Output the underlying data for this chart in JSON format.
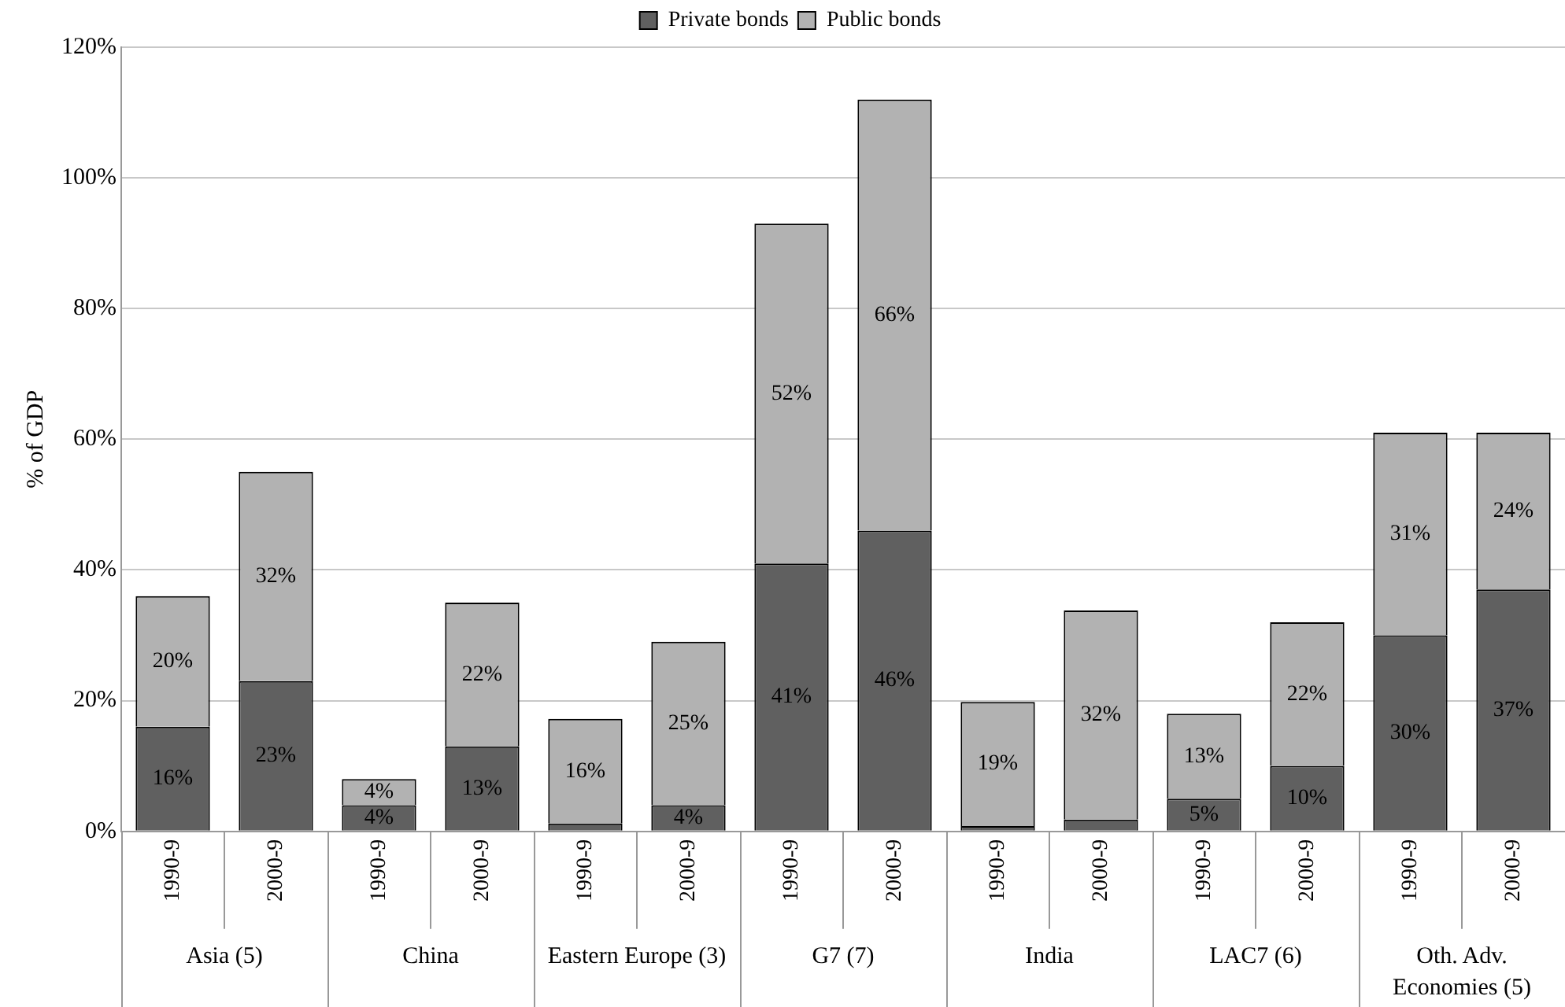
{
  "chart_data": {
    "type": "bar",
    "stacked": true,
    "ylabel": "% of GDP",
    "categories": [
      "1990-9",
      "2000-9",
      "1990-9",
      "2000-9",
      "1990-9",
      "2000-9",
      "1990-9",
      "2000-9",
      "1990-9",
      "2000-9",
      "1990-9",
      "2000-9",
      "1990-9",
      "2000-9"
    ],
    "series": [
      {
        "name": "Private bonds",
        "color": "#606060",
        "values": [
          16,
          23,
          4,
          13,
          1.2,
          4,
          41,
          46,
          0.8,
          1.8,
          5,
          10,
          30,
          37
        ],
        "value_labels": [
          "16%",
          "23%",
          "4%",
          "13%",
          null,
          "4%",
          "41%",
          "46%",
          null,
          null,
          "5%",
          "10%",
          "30%",
          "37%"
        ]
      },
      {
        "name": "Public bonds",
        "color": "#b2b2b2",
        "values": [
          20,
          32,
          4,
          22,
          16,
          25,
          52,
          66,
          19,
          32,
          13,
          22,
          31,
          24
        ],
        "value_labels": [
          "20%",
          "32%",
          "4%",
          "22%",
          "16%",
          "25%",
          "52%",
          "66%",
          "19%",
          "32%",
          "13%",
          "22%",
          "31%",
          "24%"
        ]
      }
    ],
    "ylim": [
      0,
      120
    ],
    "yticks": [
      {
        "value": 0,
        "label": "0%"
      },
      {
        "value": 20,
        "label": "20%"
      },
      {
        "value": 40,
        "label": "40%"
      },
      {
        "value": 60,
        "label": "60%"
      },
      {
        "value": 80,
        "label": "80%"
      },
      {
        "value": 100,
        "label": "100%"
      },
      {
        "value": 120,
        "label": "120%"
      }
    ],
    "grid": "y",
    "legend": "top",
    "annotations": [
      "Asia (5)",
      "China",
      "Eastern Europe (3)",
      "G7 (7)",
      "India",
      "LAC7 (6)",
      "Oth. Adv. Economies (5)"
    ]
  }
}
